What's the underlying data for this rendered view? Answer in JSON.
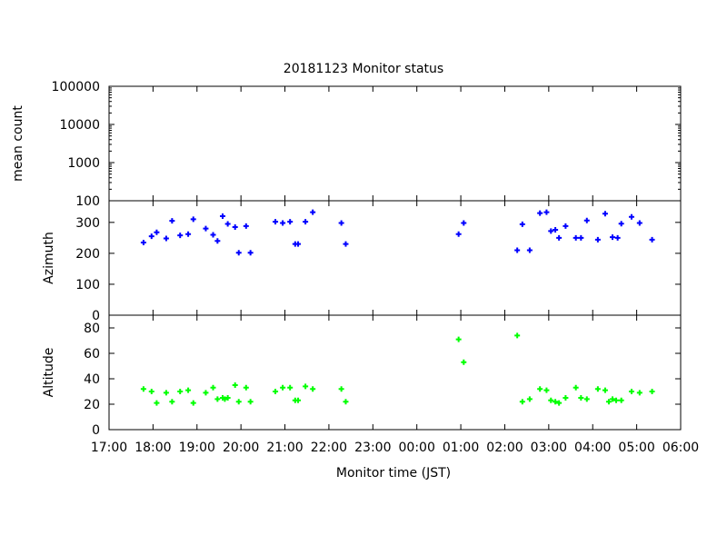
{
  "chart_data": {
    "type": "scatter",
    "title": "20181123 Monitor status",
    "xlabel": "Monitor time (JST)",
    "x_ticks": [
      "17:00",
      "18:00",
      "19:00",
      "20:00",
      "21:00",
      "22:00",
      "23:00",
      "00:00",
      "01:00",
      "02:00",
      "03:00",
      "04:00",
      "05:00",
      "06:00"
    ],
    "panels": [
      {
        "name": "mean count",
        "ylabel": "mean count",
        "scale": "log",
        "ylim": [
          100,
          100000
        ],
        "y_ticks": [
          100,
          1000,
          10000,
          100000
        ],
        "color": "#0000ff",
        "points": []
      },
      {
        "name": "Azimuth",
        "ylabel": "Azimuth",
        "scale": "linear",
        "ylim": [
          0,
          370
        ],
        "y_ticks": [
          0,
          100,
          200,
          300
        ],
        "color": "#0000ff",
        "points": [
          [
            "17:47",
            235
          ],
          [
            "17:58",
            255
          ],
          [
            "18:05",
            268
          ],
          [
            "18:18",
            248
          ],
          [
            "18:26",
            305
          ],
          [
            "18:37",
            258
          ],
          [
            "18:48",
            262
          ],
          [
            "18:55",
            310
          ],
          [
            "19:12",
            280
          ],
          [
            "19:22",
            260
          ],
          [
            "19:28",
            240
          ],
          [
            "19:35",
            320
          ],
          [
            "19:42",
            295
          ],
          [
            "19:52",
            285
          ],
          [
            "19:57",
            202
          ],
          [
            "20:07",
            288
          ],
          [
            "20:13",
            202
          ],
          [
            "20:47",
            302
          ],
          [
            "20:57",
            298
          ],
          [
            "21:07",
            302
          ],
          [
            "21:14",
            230
          ],
          [
            "21:18",
            230
          ],
          [
            "21:28",
            302
          ],
          [
            "21:38",
            333
          ],
          [
            "22:17",
            298
          ],
          [
            "22:23",
            230
          ],
          [
            "00:57",
            262
          ],
          [
            "01:04",
            298
          ],
          [
            "02:17",
            210
          ],
          [
            "02:24",
            294
          ],
          [
            "02:34",
            210
          ],
          [
            "02:48",
            330
          ],
          [
            "02:57",
            333
          ],
          [
            "03:03",
            272
          ],
          [
            "03:09",
            276
          ],
          [
            "03:14",
            250
          ],
          [
            "03:23",
            288
          ],
          [
            "03:37",
            250
          ],
          [
            "03:44",
            250
          ],
          [
            "03:52",
            306
          ],
          [
            "04:07",
            244
          ],
          [
            "04:17",
            328
          ],
          [
            "04:27",
            252
          ],
          [
            "04:34",
            250
          ],
          [
            "04:39",
            296
          ],
          [
            "04:53",
            318
          ],
          [
            "05:04",
            298
          ],
          [
            "05:21",
            244
          ]
        ]
      },
      {
        "name": "Altitude",
        "ylabel": "Altitude",
        "scale": "linear",
        "ylim": [
          0,
          90
        ],
        "y_ticks": [
          0,
          20,
          40,
          60,
          80
        ],
        "color": "#00ff00",
        "points": [
          [
            "17:47",
            32
          ],
          [
            "17:58",
            30
          ],
          [
            "18:05",
            21
          ],
          [
            "18:18",
            29
          ],
          [
            "18:26",
            22
          ],
          [
            "18:37",
            30
          ],
          [
            "18:48",
            31
          ],
          [
            "18:55",
            21
          ],
          [
            "19:12",
            29
          ],
          [
            "19:22",
            33
          ],
          [
            "19:28",
            24
          ],
          [
            "19:35",
            25
          ],
          [
            "19:38",
            24
          ],
          [
            "19:42",
            25
          ],
          [
            "19:52",
            35
          ],
          [
            "19:57",
            22
          ],
          [
            "20:07",
            33
          ],
          [
            "20:13",
            22
          ],
          [
            "20:47",
            30
          ],
          [
            "20:57",
            33
          ],
          [
            "21:07",
            33
          ],
          [
            "21:14",
            23
          ],
          [
            "21:18",
            23
          ],
          [
            "21:28",
            34
          ],
          [
            "21:38",
            32
          ],
          [
            "22:17",
            32
          ],
          [
            "22:23",
            22
          ],
          [
            "00:57",
            71
          ],
          [
            "01:04",
            53
          ],
          [
            "02:17",
            74
          ],
          [
            "02:24",
            22
          ],
          [
            "02:34",
            24
          ],
          [
            "02:48",
            32
          ],
          [
            "02:57",
            31
          ],
          [
            "03:03",
            23
          ],
          [
            "03:09",
            22
          ],
          [
            "03:14",
            21
          ],
          [
            "03:23",
            25
          ],
          [
            "03:37",
            33
          ],
          [
            "03:44",
            25
          ],
          [
            "03:52",
            24
          ],
          [
            "04:07",
            32
          ],
          [
            "04:17",
            31
          ],
          [
            "04:22",
            22
          ],
          [
            "04:27",
            24
          ],
          [
            "04:32",
            23
          ],
          [
            "04:39",
            23
          ],
          [
            "04:53",
            30
          ],
          [
            "05:04",
            29
          ],
          [
            "05:21",
            30
          ]
        ]
      }
    ]
  }
}
